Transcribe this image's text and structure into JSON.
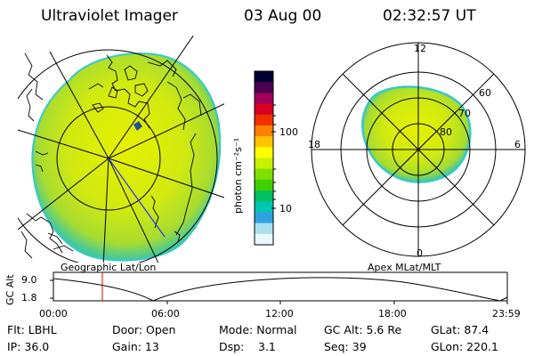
{
  "header": {
    "instrument": "Ultraviolet Imager",
    "date": "03 Aug 00",
    "time": "02:32:57 UT"
  },
  "left_map": {
    "caption": "Geographic Lat/Lon"
  },
  "colorbar": {
    "unit_label": "photon cm⁻²s⁻¹",
    "tick_labels": [
      "100",
      "10"
    ],
    "colors": [
      "#000030",
      "#4a0050",
      "#a0005a",
      "#d80020",
      "#f03000",
      "#ff8000",
      "#ffc400",
      "#ffff00",
      "#c8f000",
      "#80e000",
      "#40d000",
      "#00c060",
      "#00c8b0",
      "#30a0e0",
      "#a8e0f0",
      "#e8f8ff"
    ]
  },
  "right_plot": {
    "caption": "Apex MLat/MLT",
    "mlt_labels": {
      "top": "12",
      "left": "18",
      "right": "6",
      "bottom": "0"
    },
    "lat_labels": [
      "60",
      "70",
      "80"
    ]
  },
  "altitude_panel": {
    "ylabel": "GC Alt",
    "y_ticks": [
      "9.0",
      "1.8"
    ],
    "x_ticks": [
      "00:00",
      "06:00",
      "12:00",
      "18:00",
      "23:59"
    ]
  },
  "status": {
    "filter": "Flt: LBHL",
    "ip": "IP: 36.0",
    "door": "Door: Open",
    "gain": "Gain: 13",
    "mode": "Mode: Normal",
    "dsp_label": "Dsp:",
    "dsp_value": "3.1",
    "gc_alt": "GC Alt: 5.6 Re",
    "seq": "Seq: 39",
    "glat": "GLat: 87.4",
    "glon": "GLon: 220.1"
  }
}
